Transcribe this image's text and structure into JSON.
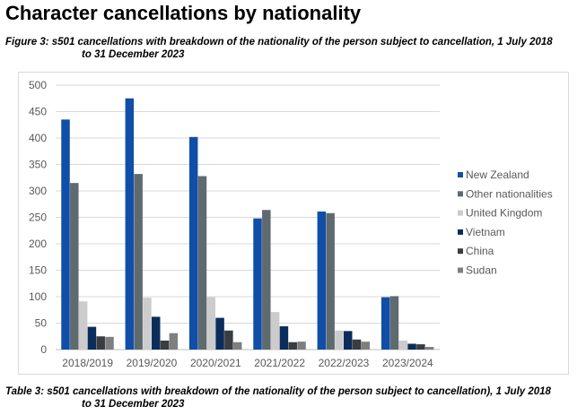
{
  "title": "Character cancellations by nationality",
  "figure_caption": {
    "line1": "Figure 3: s501 cancellations with breakdown of the nationality of the person subject to cancellation, 1 July 2018",
    "line2": "to 31 December 2023"
  },
  "table_caption": {
    "line1": "Table 3: s501 cancellations with breakdown of the nationality of the person subject to cancellation), 1 July 2018",
    "line2": "to 31 December 2023"
  },
  "chart_data": {
    "type": "bar",
    "categories": [
      "2018/2019",
      "2019/2020",
      "2020/2021",
      "2021/2022",
      "2022/2023",
      "2023/2024"
    ],
    "series": [
      {
        "name": "New Zealand",
        "color": "#0f4fa8",
        "values": [
          435,
          475,
          402,
          248,
          261,
          99
        ]
      },
      {
        "name": "Other nationalities",
        "color": "#5f6a70",
        "values": [
          315,
          332,
          328,
          264,
          258,
          101
        ]
      },
      {
        "name": "United Kingdom",
        "color": "#cccccc",
        "values": [
          91,
          98,
          99,
          71,
          36,
          17
        ]
      },
      {
        "name": "Vietnam",
        "color": "#0b2d5c",
        "values": [
          43,
          62,
          60,
          44,
          35,
          11
        ]
      },
      {
        "name": "China",
        "color": "#3a3d40",
        "values": [
          25,
          17,
          36,
          14,
          19,
          10
        ]
      },
      {
        "name": "Sudan",
        "color": "#7f7f7f",
        "values": [
          24,
          31,
          14,
          15,
          15,
          5
        ]
      }
    ],
    "ylim": [
      0,
      500
    ],
    "yticks": [
      "0",
      "50",
      "100",
      "150",
      "200",
      "250",
      "300",
      "350",
      "400",
      "450",
      "500"
    ],
    "grid": true,
    "legend": "right"
  }
}
